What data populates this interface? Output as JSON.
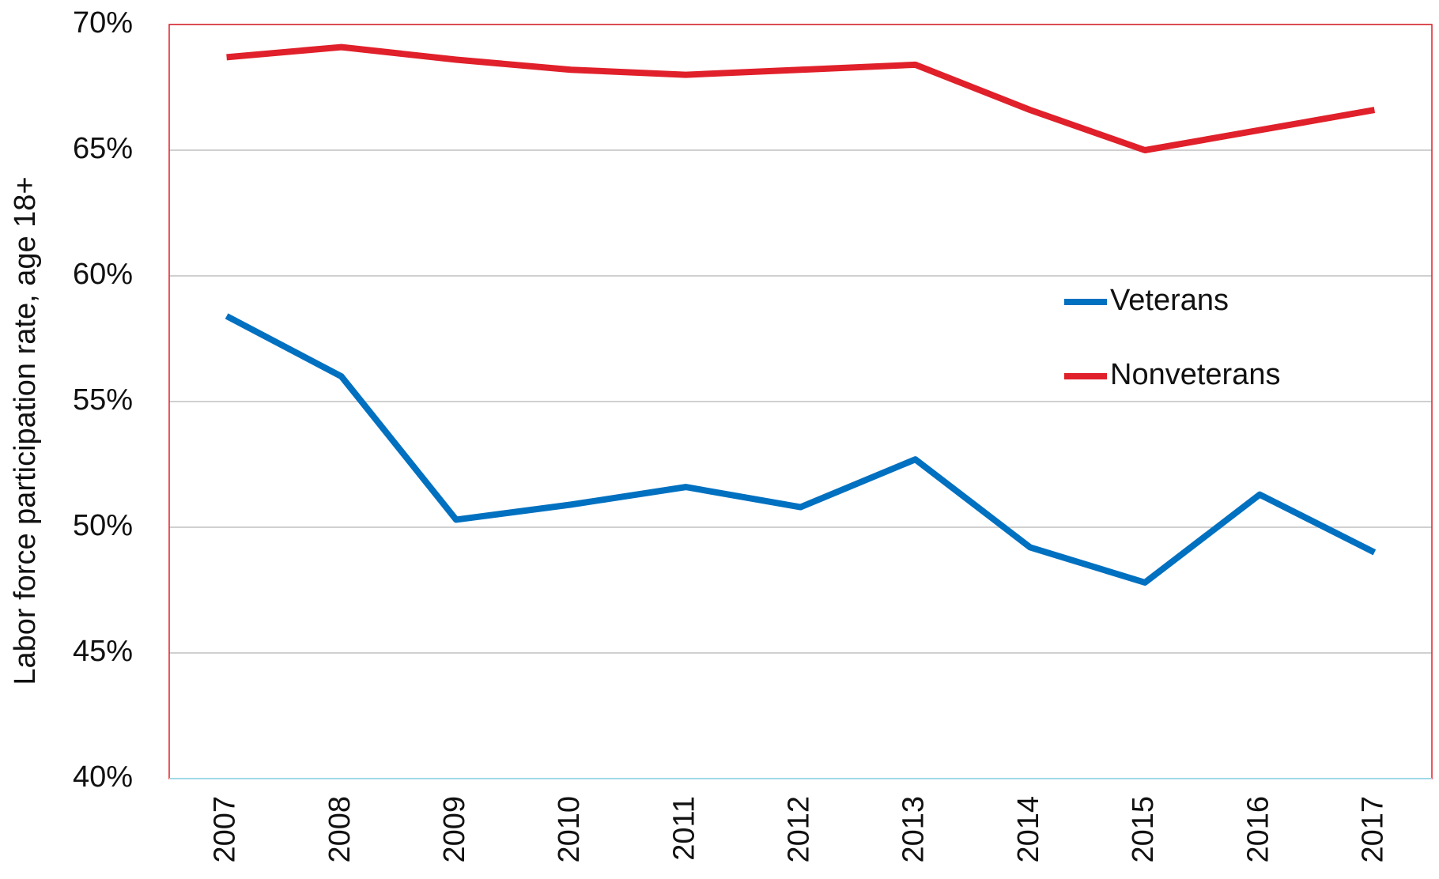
{
  "chart_data": {
    "type": "line",
    "y_label": "Labor force participation rate, age 18+",
    "categories": [
      "2007",
      "2008",
      "2009",
      "2010",
      "2011",
      "2012",
      "2013",
      "2014",
      "2015",
      "2016",
      "2017"
    ],
    "series": [
      {
        "name": "Veterans",
        "color": "#0070c0",
        "values": [
          58.4,
          56.0,
          50.3,
          50.9,
          51.6,
          50.8,
          52.7,
          49.2,
          47.8,
          51.3,
          49.0
        ]
      },
      {
        "name": "Nonveterans",
        "color": "#e0202a",
        "values": [
          68.7,
          69.1,
          68.6,
          68.2,
          68.0,
          68.2,
          68.4,
          66.6,
          65.0,
          65.8,
          66.6
        ]
      }
    ],
    "ylim": [
      40,
      70
    ],
    "yticks": [
      {
        "value": 40,
        "label": "40%"
      },
      {
        "value": 45,
        "label": "45%"
      },
      {
        "value": 50,
        "label": "50%"
      },
      {
        "value": 55,
        "label": "55%"
      },
      {
        "value": 60,
        "label": "60%"
      },
      {
        "value": 65,
        "label": "65%"
      },
      {
        "value": 70,
        "label": "70%"
      }
    ],
    "grid": true,
    "legend": "center right"
  }
}
